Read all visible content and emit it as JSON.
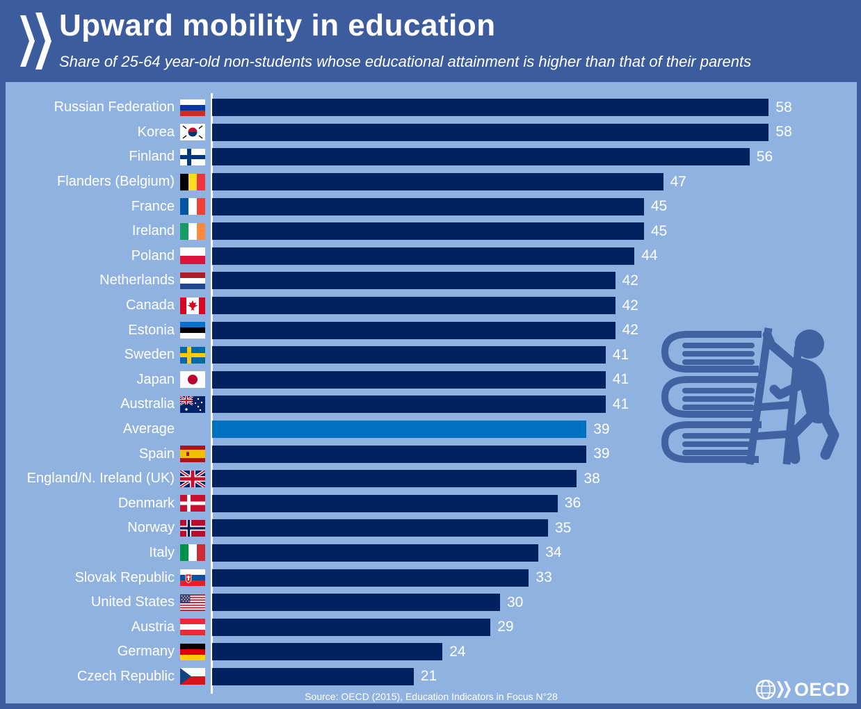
{
  "header": {
    "title": "Upward mobility in education",
    "subtitle": "Share of 25-64 year-old non-students whose educational attainment is higher than that of their parents",
    "logo_icon": "oecd-double-chevron-icon"
  },
  "chart_data": {
    "type": "bar",
    "orientation": "horizontal",
    "title": "Upward mobility in education",
    "subtitle": "Share of 25-64 year-old non-students whose educational attainment is higher than that of their parents",
    "unit": "percent",
    "xlim": [
      0,
      67
    ],
    "grid": false,
    "legend": "none",
    "value_labels": "end-of-bar",
    "categories": [
      "Russian Federation",
      "Korea",
      "Finland",
      "Flanders (Belgium)",
      "France",
      "Ireland",
      "Poland",
      "Netherlands",
      "Canada",
      "Estonia",
      "Sweden",
      "Japan",
      "Australia",
      "Average",
      "Spain",
      "England/N. Ireland (UK)",
      "Denmark",
      "Norway",
      "Italy",
      "Slovak Republic",
      "United States",
      "Austria",
      "Germany",
      "Czech Republic"
    ],
    "values": [
      58,
      58,
      56,
      47,
      45,
      45,
      44,
      42,
      42,
      42,
      41,
      41,
      41,
      39,
      39,
      38,
      36,
      35,
      34,
      33,
      30,
      29,
      24,
      21
    ],
    "flags": [
      "ru",
      "kr",
      "fi",
      "be",
      "fr",
      "ie",
      "pl",
      "nl",
      "ca",
      "ee",
      "se",
      "jp",
      "au",
      "",
      "es",
      "gb",
      "dk",
      "no",
      "it",
      "sk",
      "us",
      "at",
      "de",
      "cz"
    ],
    "highlight_category": "Average"
  },
  "illustration": {
    "icon": "books-ladder-climber-icon"
  },
  "footer": {
    "source": "Source: OECD (2015), Education Indicators in Focus N°28",
    "brand": "OECD",
    "brand_icon": "oecd-globe-icon"
  },
  "colors": {
    "frame": "#3D5C9D",
    "chart_background": "#90B2E1",
    "bar": "#03215F",
    "highlight_bar": "#0070C0",
    "illustration": "#3E63A0",
    "text": "#FFFFFF"
  }
}
